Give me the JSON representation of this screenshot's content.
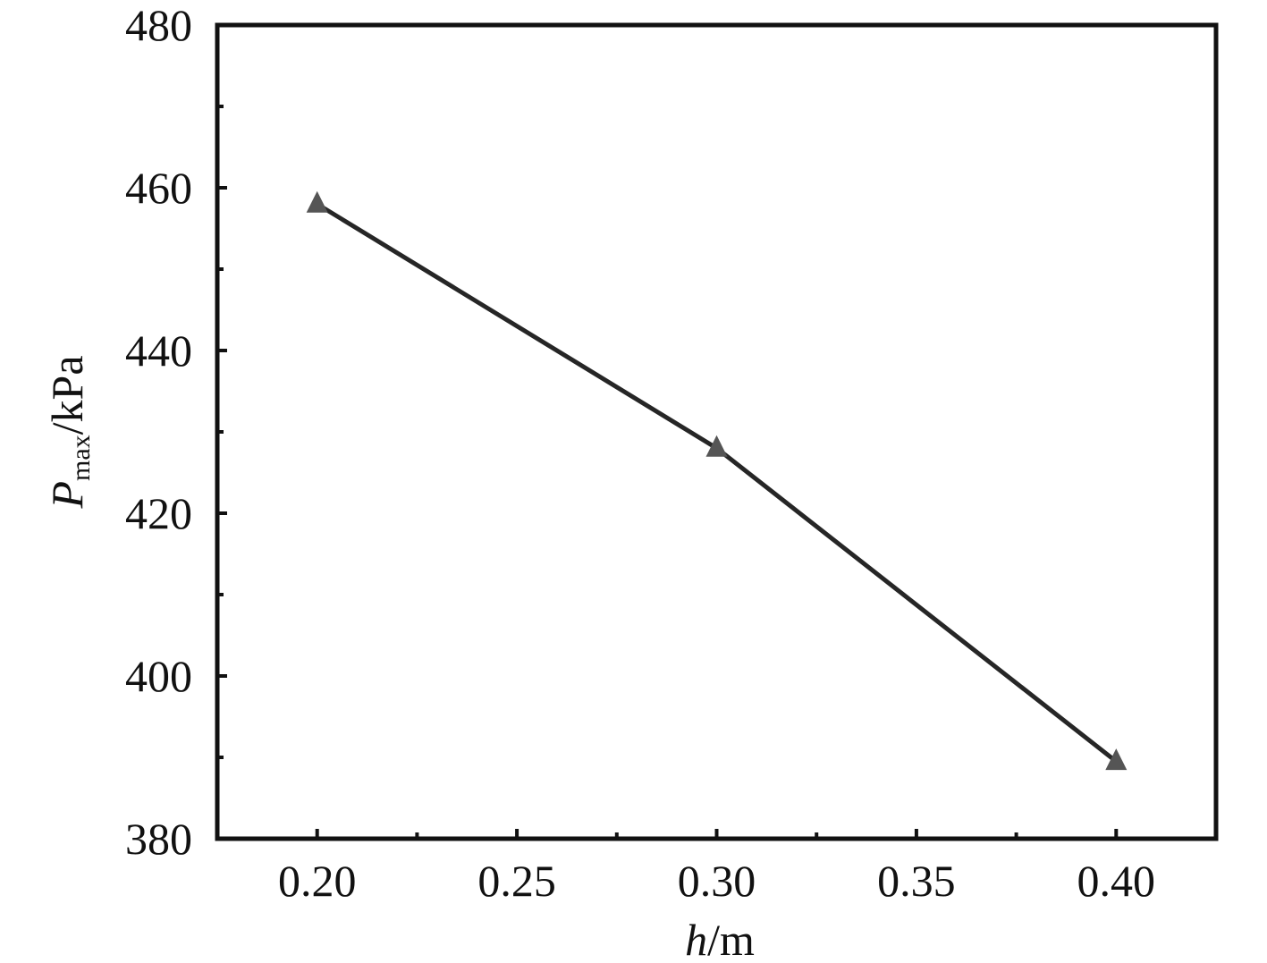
{
  "chart_data": {
    "type": "line",
    "title": "",
    "xlabel": {
      "italic": "h",
      "rest": "/m"
    },
    "ylabel": {
      "italic": "P",
      "sub": "max",
      "rest": "/kPa"
    },
    "xlim": [
      0.175,
      0.425
    ],
    "ylim": [
      380,
      480
    ],
    "x_ticks": [
      "0.20",
      "0.25",
      "0.30",
      "0.35",
      "0.40"
    ],
    "y_ticks": [
      "380",
      "400",
      "420",
      "440",
      "460",
      "480"
    ],
    "grid": false,
    "legend": "none",
    "series": [
      {
        "marker": "triangle",
        "color": "#262626",
        "marker_color": "#555555",
        "x": [
          0.2,
          0.3,
          0.4
        ],
        "y": [
          458,
          428,
          389.5
        ]
      }
    ]
  }
}
